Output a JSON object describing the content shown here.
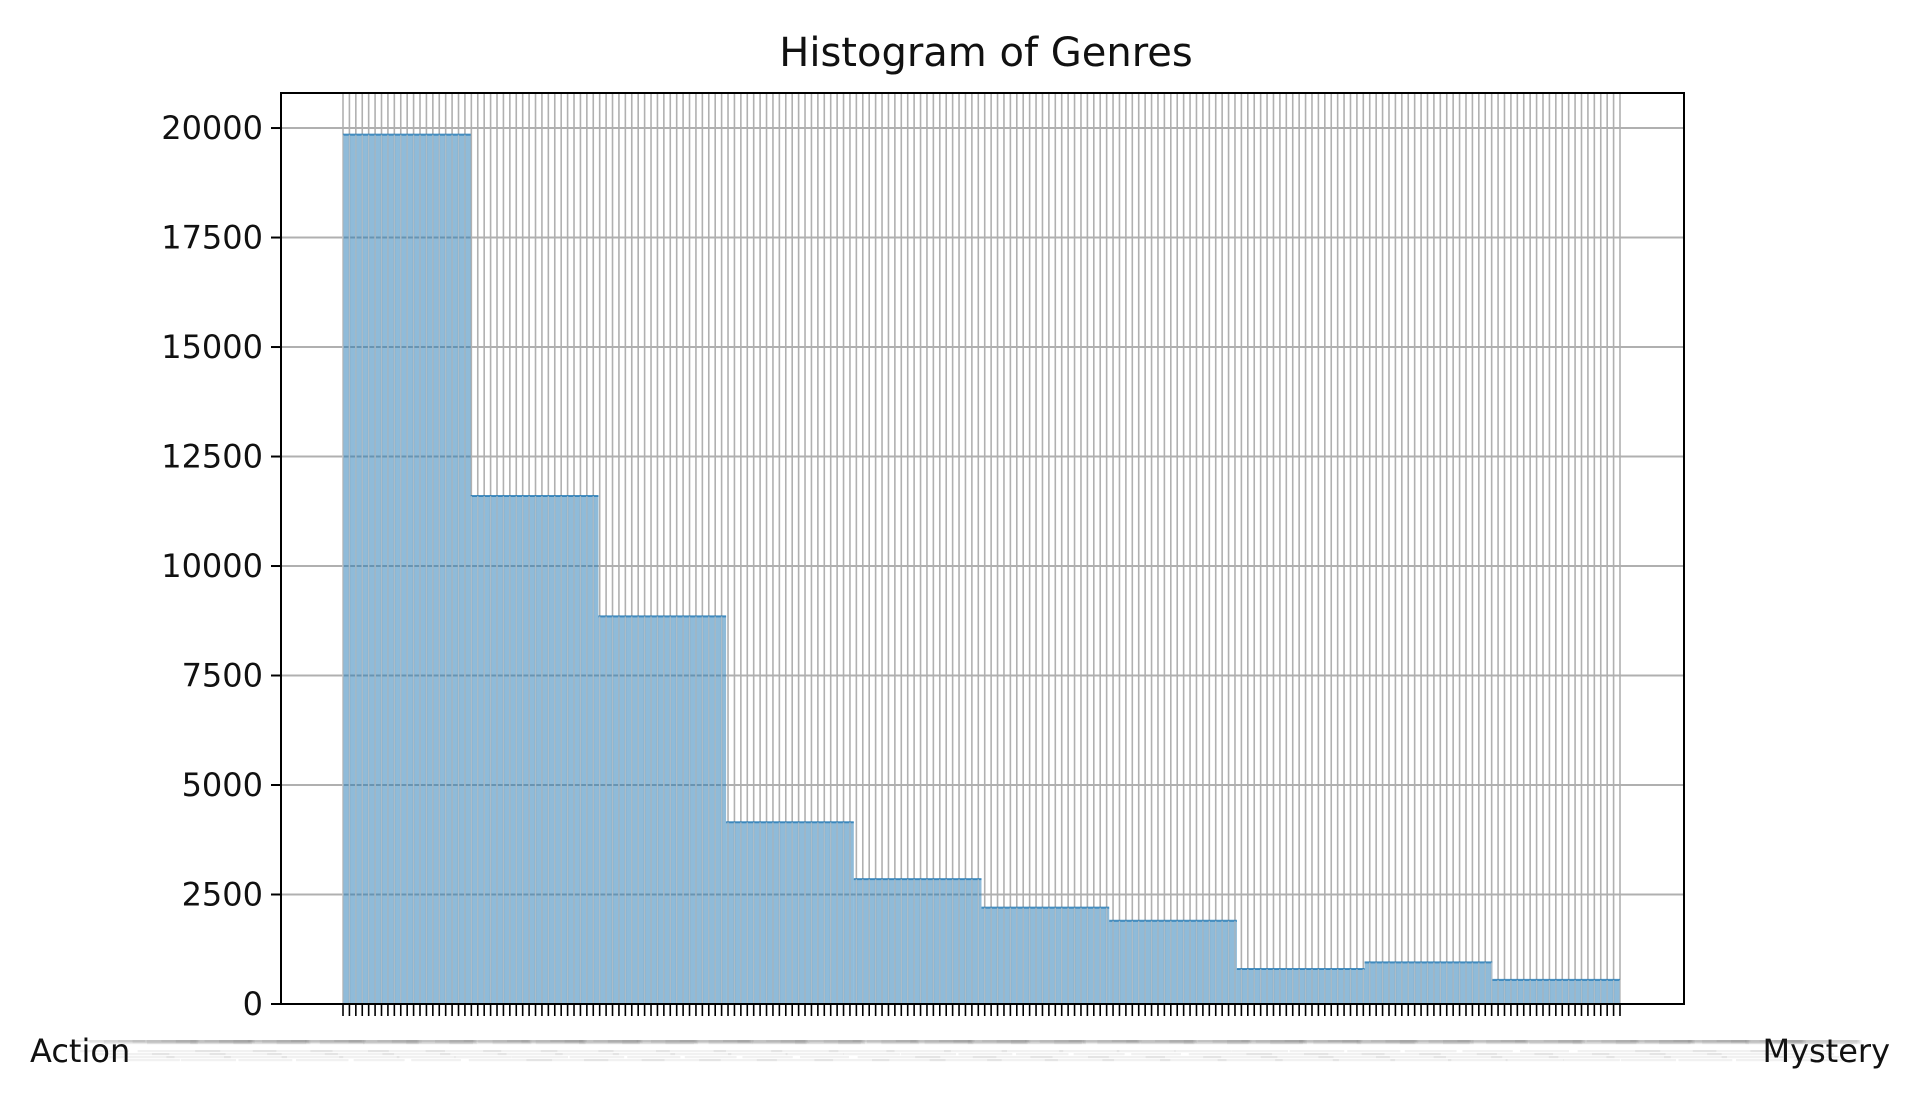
{
  "chart_data": {
    "type": "bar",
    "title": "Histogram of Genres",
    "xlabel": "",
    "ylabel": "",
    "ylim": [
      0,
      20800
    ],
    "yticks": [
      0,
      2500,
      5000,
      7500,
      10000,
      12500,
      15000,
      17500,
      20000
    ],
    "grid": true,
    "bin_counts": [
      19850,
      11600,
      8850,
      4150,
      2850,
      2200,
      1900,
      800,
      950,
      550
    ],
    "category_count": 200,
    "categories_visible": [
      "Action",
      "Mystery"
    ],
    "colors": {
      "bar": "#1f77b4",
      "bar_edge": "#d8d8d8",
      "grid": "#b0b0b0",
      "axis": "#000000"
    }
  }
}
